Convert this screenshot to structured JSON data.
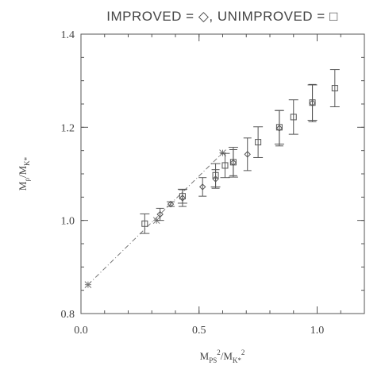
{
  "chart_data": {
    "type": "scatter",
    "title": "IMPROVED = ◇, UNIMPROVED = □",
    "xlabel": "M_PS^2/M_K*^2",
    "ylabel": "M_ρ/M_K*",
    "xlim": [
      0.0,
      1.2
    ],
    "ylim": [
      0.8,
      1.4
    ],
    "xticks": [
      "0.0",
      "0.5",
      "1.0"
    ],
    "yticks": [
      "0.8",
      "1.0",
      "1.2",
      "1.4"
    ],
    "series": [
      {
        "name": "UNIMPROVED",
        "marker": "square",
        "points": [
          {
            "x": 0.27,
            "y": 0.993,
            "err": 0.021
          },
          {
            "x": 0.43,
            "y": 1.052,
            "err": 0.015
          },
          {
            "x": 0.57,
            "y": 1.097,
            "err": 0.025
          },
          {
            "x": 0.61,
            "y": 1.118,
            "err": 0.026
          },
          {
            "x": 0.645,
            "y": 1.125,
            "err": 0.032
          },
          {
            "x": 0.75,
            "y": 1.168,
            "err": 0.033
          },
          {
            "x": 0.84,
            "y": 1.2,
            "err": 0.036
          },
          {
            "x": 0.9,
            "y": 1.222,
            "err": 0.037
          },
          {
            "x": 0.98,
            "y": 1.253,
            "err": 0.038
          },
          {
            "x": 1.075,
            "y": 1.284,
            "err": 0.04
          }
        ]
      },
      {
        "name": "IMPROVED",
        "marker": "diamond",
        "points": [
          {
            "x": 0.335,
            "y": 1.013,
            "err": 0.013
          },
          {
            "x": 0.38,
            "y": 1.035,
            "err": 0.005
          },
          {
            "x": 0.43,
            "y": 1.048,
            "err": 0.018
          },
          {
            "x": 0.515,
            "y": 1.072,
            "err": 0.02
          },
          {
            "x": 0.57,
            "y": 1.089,
            "err": 0.02
          },
          {
            "x": 0.645,
            "y": 1.124,
            "err": 0.028
          },
          {
            "x": 0.705,
            "y": 1.142,
            "err": 0.035
          },
          {
            "x": 0.84,
            "y": 1.198,
            "err": 0.038
          },
          {
            "x": 0.98,
            "y": 1.252,
            "err": 0.04
          }
        ]
      }
    ],
    "fit_line": {
      "x": [
        0.03,
        0.6
      ],
      "y": [
        0.862,
        1.145
      ]
    },
    "fit_markers": [
      {
        "x": 0.03,
        "y": 0.862
      },
      {
        "x": 0.32,
        "y": 1.0
      },
      {
        "x": 0.6,
        "y": 1.145
      }
    ]
  }
}
